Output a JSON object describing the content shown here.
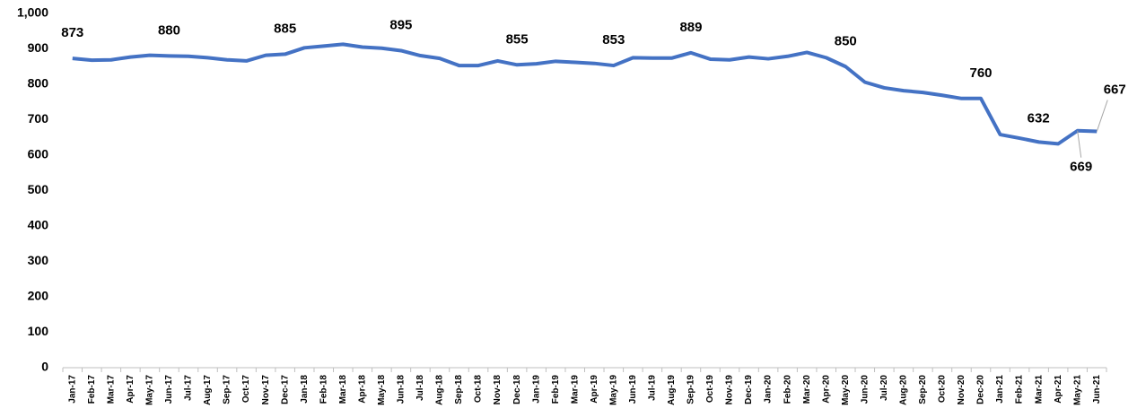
{
  "chart_data": {
    "type": "line",
    "categories": [
      "Jan-17",
      "Feb-17",
      "Mar-17",
      "Apr-17",
      "May-17",
      "Jun-17",
      "Jul-17",
      "Aug-17",
      "Sep-17",
      "Oct-17",
      "Nov-17",
      "Dec-17",
      "Jan-18",
      "Feb-18",
      "Mar-18",
      "Apr-18",
      "May-18",
      "Jun-18",
      "Jul-18",
      "Aug-18",
      "Sep-18",
      "Oct-18",
      "Nov-18",
      "Dec-18",
      "Jan-19",
      "Feb-19",
      "Mar-19",
      "Apr-19",
      "May-19",
      "Jun-19",
      "Jul-19",
      "Aug-19",
      "Sep-19",
      "Oct-19",
      "Nov-19",
      "Dec-19",
      "Jan-20",
      "Feb-20",
      "Mar-20",
      "Apr-20",
      "May-20",
      "Jun-20",
      "Jul-20",
      "Aug-20",
      "Sep-20",
      "Oct-20",
      "Nov-20",
      "Dec-20",
      "Jan-21",
      "Feb-21",
      "Mar-21",
      "Apr-21",
      "May-21",
      "Jun-21"
    ],
    "values": [
      873,
      868,
      869,
      877,
      882,
      880,
      879,
      875,
      869,
      866,
      882,
      885,
      903,
      908,
      913,
      905,
      902,
      895,
      881,
      873,
      853,
      853,
      866,
      855,
      858,
      865,
      862,
      859,
      853,
      875,
      874,
      874,
      889,
      871,
      869,
      877,
      872,
      879,
      890,
      875,
      850,
      806,
      790,
      782,
      777,
      769,
      760,
      760,
      658,
      648,
      637,
      632,
      669,
      667
    ],
    "value_labels": [
      "873",
      null,
      null,
      null,
      null,
      "880",
      null,
      null,
      null,
      null,
      null,
      "885",
      null,
      null,
      null,
      null,
      null,
      "895",
      null,
      null,
      null,
      null,
      null,
      "855",
      null,
      null,
      null,
      null,
      "853",
      null,
      null,
      null,
      "889",
      null,
      null,
      null,
      null,
      null,
      null,
      null,
      "850",
      null,
      null,
      null,
      null,
      null,
      null,
      "760",
      null,
      null,
      null,
      "632",
      "669",
      "667"
    ],
    "color": "#4472c4",
    "ylim": [
      0,
      1000
    ],
    "yticks": [
      0,
      100,
      200,
      300,
      400,
      500,
      600,
      700,
      800,
      900,
      {
        "value": 1000,
        "label": "1,000"
      }
    ]
  }
}
